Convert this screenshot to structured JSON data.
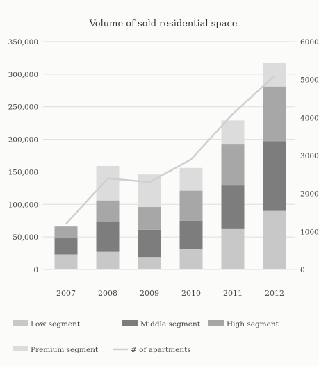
{
  "chart_data": {
    "type": "bar",
    "stacked": true,
    "title": "Volume of sold residential space",
    "categories": [
      "2007",
      "2008",
      "2009",
      "2010",
      "2011",
      "2012"
    ],
    "series": [
      {
        "name": "Low segment",
        "values": [
          23000,
          27000,
          19000,
          32000,
          62000,
          90000
        ],
        "color": "#c8c8c8"
      },
      {
        "name": "Middle segment",
        "values": [
          25000,
          47000,
          42000,
          43000,
          67000,
          107000
        ],
        "color": "#7d7d7d"
      },
      {
        "name": "High segment",
        "values": [
          18000,
          32000,
          35000,
          46000,
          63000,
          84000
        ],
        "color": "#a7a7a7"
      },
      {
        "name": "Premium segment",
        "values": [
          0,
          53000,
          50000,
          35000,
          37000,
          37000
        ],
        "color": "#dcdcdc"
      }
    ],
    "line_series": {
      "name": "# of apartments",
      "values": [
        1200,
        2400,
        2300,
        2900,
        4100,
        5100
      ],
      "color": "#cfcfcf"
    },
    "y_left": {
      "ticks": [
        "0",
        "50,000",
        "100,000",
        "150,000",
        "200,000",
        "250,000",
        "300,000",
        "350,000"
      ],
      "range": [
        0,
        350000
      ]
    },
    "y_right": {
      "ticks": [
        "0",
        "1000",
        "2000",
        "3000",
        "4000",
        "5000",
        "6000"
      ],
      "range": [
        0,
        6000
      ]
    },
    "legend": [
      "Low segment",
      "Middle segment",
      "High segment",
      "Premium segment",
      "# of apartments"
    ],
    "legend_placement": "bottom",
    "grid": true
  }
}
